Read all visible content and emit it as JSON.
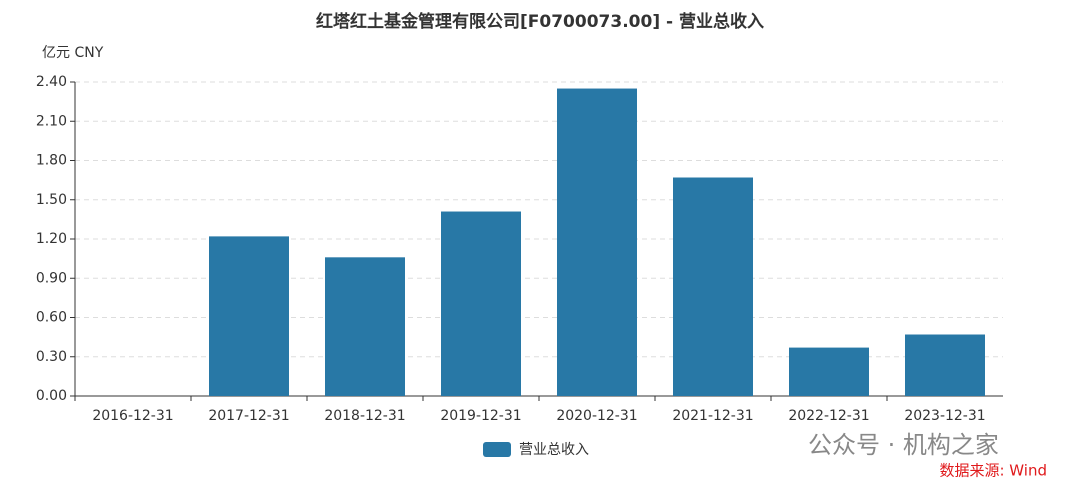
{
  "chart_data": {
    "type": "bar",
    "title": "红塔红土基金管理有限公司[F0700073.00] - 营业总收入",
    "y_unit": "亿元  CNY",
    "categories": [
      "2016-12-31",
      "2017-12-31",
      "2018-12-31",
      "2019-12-31",
      "2020-12-31",
      "2021-12-31",
      "2022-12-31",
      "2023-12-31"
    ],
    "series": [
      {
        "name": "营业总收入",
        "color": "#2878a6",
        "values": [
          0,
          1.22,
          1.06,
          1.41,
          2.35,
          1.67,
          0.37,
          0.47
        ]
      }
    ],
    "ylim": [
      0,
      2.4
    ],
    "yticks": [
      {
        "value": 0,
        "label": "0.00"
      },
      {
        "value": 0.3,
        "label": "0.30"
      },
      {
        "value": 0.6,
        "label": "0.60"
      },
      {
        "value": 0.9,
        "label": "0.90"
      },
      {
        "value": 1.2,
        "label": "1.20"
      },
      {
        "value": 1.5,
        "label": "1.50"
      },
      {
        "value": 1.8,
        "label": "1.80"
      },
      {
        "value": 2.1,
        "label": "2.10"
      },
      {
        "value": 2.4,
        "label": "2.40"
      }
    ],
    "grid": true,
    "watermark": "公众号 · 机构之家",
    "source": "数据来源: Wind"
  }
}
